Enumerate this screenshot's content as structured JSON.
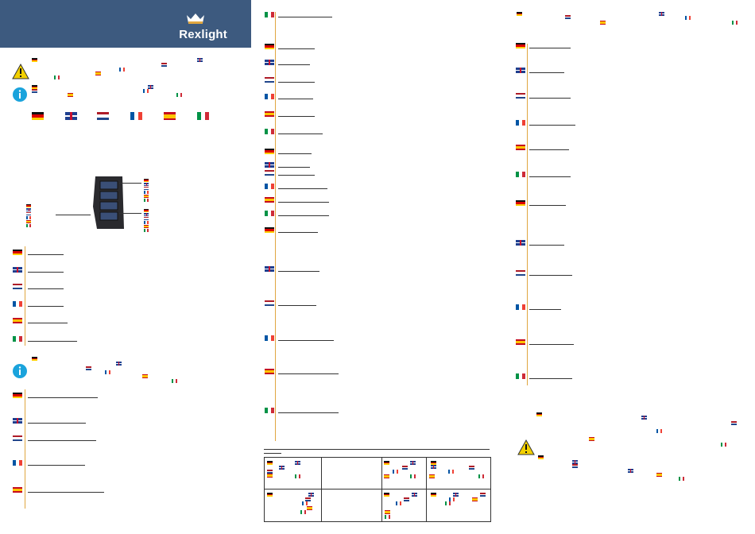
{
  "brand": {
    "name": "Rexlight",
    "header_color": "#3d5a7f",
    "accent": "#e0a640"
  },
  "icons": {
    "warning": "warning-triangle-icon",
    "info": "info-circle-icon"
  },
  "languages": [
    "de",
    "gb",
    "nl",
    "fr",
    "es",
    "it"
  ]
}
